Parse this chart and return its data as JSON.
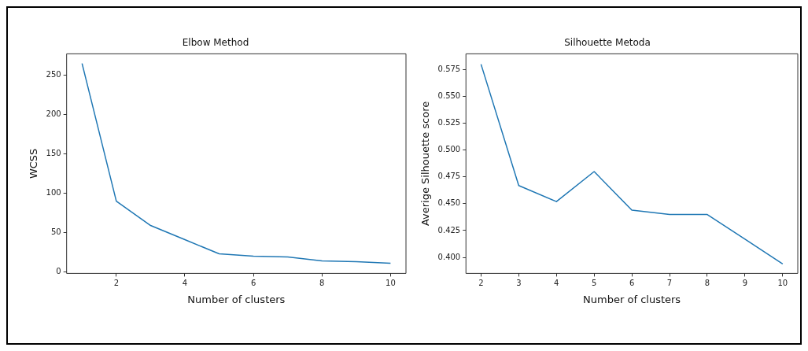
{
  "chart_data": [
    {
      "type": "line",
      "title": "Elbow Method",
      "xlabel": "Number of clusters",
      "ylabel": "WCSS",
      "x": [
        1,
        2,
        3,
        4,
        5,
        6,
        7,
        8,
        9,
        10
      ],
      "series": [
        {
          "color": "#1f77b4",
          "values": [
            265,
            90,
            59,
            41,
            23,
            20,
            19,
            14,
            13,
            11
          ]
        }
      ],
      "xlim": [
        0.55,
        10.45
      ],
      "ylim": [
        -1.9,
        277.3
      ],
      "xticks": [
        2,
        4,
        6,
        8,
        10
      ],
      "yticks": [
        0,
        50,
        100,
        150,
        200,
        250
      ]
    },
    {
      "type": "line",
      "title": "Silhouette Metoda",
      "xlabel": "Number of clusters",
      "ylabel": "Averige Silhouette score",
      "x": [
        2,
        3,
        4,
        5,
        6,
        7,
        8,
        9,
        10
      ],
      "series": [
        {
          "color": "#1f77b4",
          "values": [
            0.58,
            0.467,
            0.452,
            0.48,
            0.444,
            0.44,
            0.44,
            0.417,
            0.394
          ]
        }
      ],
      "xlim": [
        1.6,
        10.4
      ],
      "ylim": [
        0.3851,
        0.5897
      ],
      "xticks": [
        2,
        3,
        4,
        5,
        6,
        7,
        8,
        9,
        10
      ],
      "yticks": [
        {
          "value": 0.4,
          "label": "0.400"
        },
        {
          "value": 0.425,
          "label": "0.425"
        },
        {
          "value": 0.45,
          "label": "0.450"
        },
        {
          "value": 0.475,
          "label": "0.475"
        },
        {
          "value": 0.5,
          "label": "0.500"
        },
        {
          "value": 0.525,
          "label": "0.525"
        },
        {
          "value": 0.55,
          "label": "0.550"
        },
        {
          "value": 0.575,
          "label": "0.575"
        }
      ]
    }
  ]
}
